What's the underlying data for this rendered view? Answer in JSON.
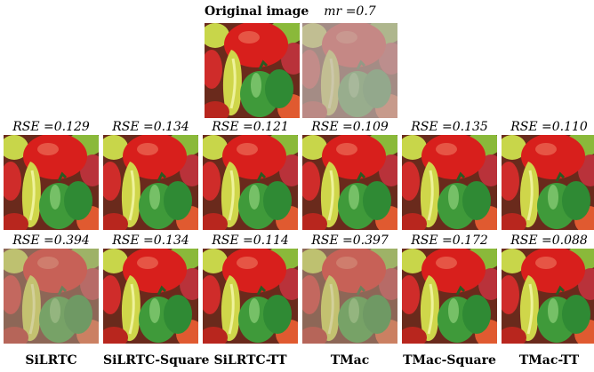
{
  "top": {
    "original_label": "Original image",
    "mr_label": "mr =0.7"
  },
  "methods": [
    "SiLRTC",
    "SiLRTC-Square",
    "SiLRTC-TT",
    "TMac",
    "TMac-Square",
    "TMac-TT"
  ],
  "rows": [
    {
      "rse": [
        "RSE =0.129",
        "RSE =0.134",
        "RSE =0.121",
        "RSE =0.109",
        "RSE =0.135",
        "RSE =0.110"
      ]
    },
    {
      "rse": [
        "RSE =0.394",
        "RSE =0.134",
        "RSE =0.114",
        "RSE =0.397",
        "RSE =0.172",
        "RSE =0.088"
      ]
    }
  ]
}
